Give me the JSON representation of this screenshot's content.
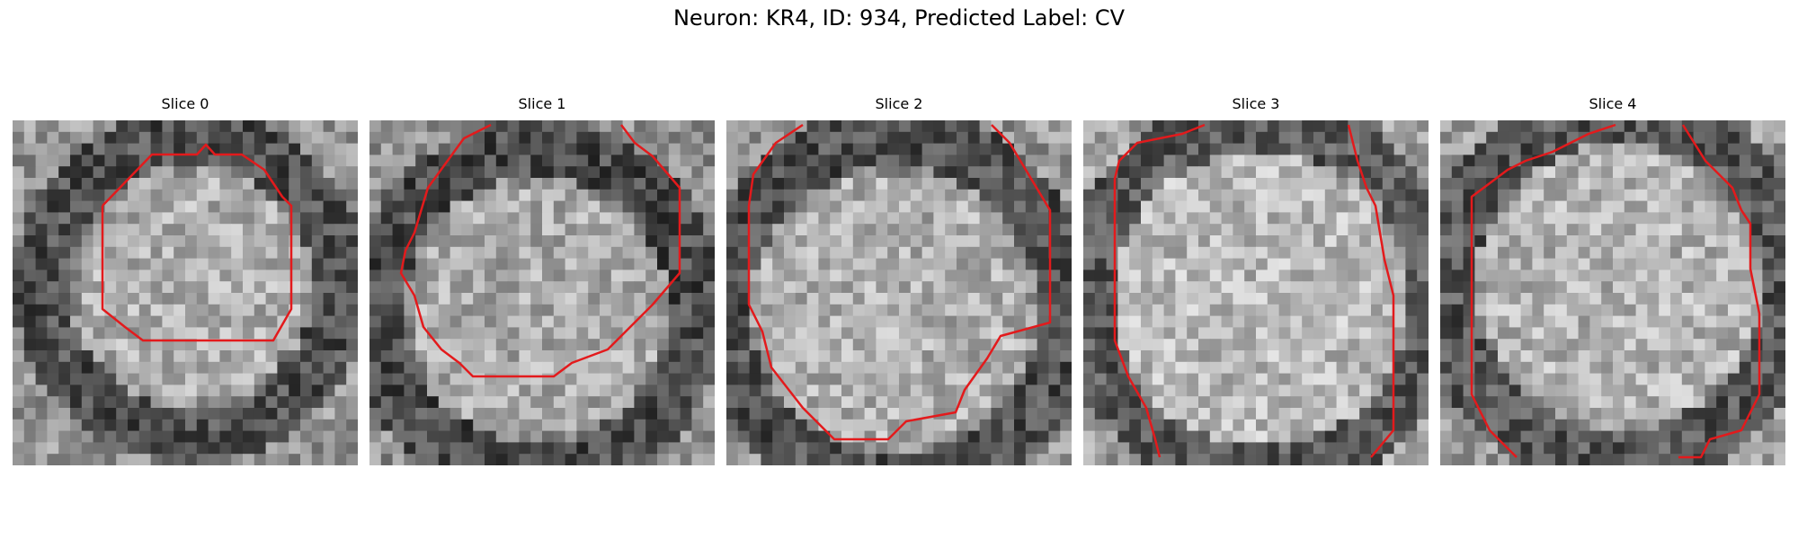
{
  "figure": {
    "title": "Neuron: KR4, ID: 934, Predicted Label: CV",
    "contour_color": "#e31a1c",
    "panels": [
      {
        "title": "Slice 0"
      },
      {
        "title": "Slice 1"
      },
      {
        "title": "Slice 2"
      },
      {
        "title": "Slice 3"
      },
      {
        "title": "Slice 4"
      }
    ]
  }
}
